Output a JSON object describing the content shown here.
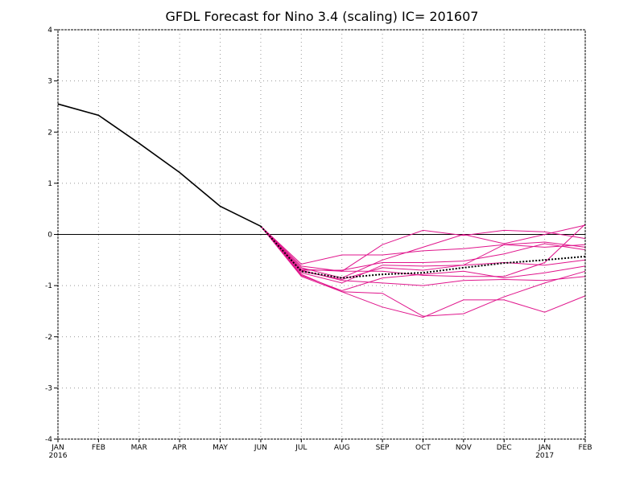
{
  "chart_data": {
    "type": "line",
    "title": "GFDL Forecast for Nino 3.4 (scaling) IC= 201607",
    "xlabel": "",
    "ylabel": "",
    "x_ticks": [
      "JAN",
      "FEB",
      "MAR",
      "APR",
      "MAY",
      "JUN",
      "JUL",
      "AUG",
      "SEP",
      "OCT",
      "NOV",
      "DEC",
      "JAN",
      "FEB"
    ],
    "x_year_labels": [
      {
        "index": 0,
        "label": "2016"
      },
      {
        "index": 12,
        "label": "2017"
      }
    ],
    "y_ticks": [
      4,
      3,
      2,
      1,
      0,
      -1,
      -2,
      -3,
      -4
    ],
    "ylim": [
      -4,
      4
    ],
    "grid": true,
    "zero_line": true,
    "colors": {
      "observed": "#000000",
      "ensemble": "#e0158c",
      "mean": "#000000",
      "grid": "#999999",
      "frame": "#000000"
    },
    "observed": {
      "x": [
        0,
        1,
        2,
        3,
        4,
        5
      ],
      "values": [
        2.55,
        2.33,
        1.78,
        1.21,
        0.55,
        0.16
      ]
    },
    "ensemble_x": [
      5,
      6,
      7,
      8,
      9,
      10,
      11,
      12,
      13
    ],
    "ensemble": [
      [
        0.16,
        -0.58,
        -0.4,
        -0.4,
        -0.32,
        -0.28,
        -0.2,
        -0.15,
        -0.25
      ],
      [
        0.16,
        -0.62,
        -0.72,
        -0.2,
        0.08,
        -0.02,
        0.08,
        0.05,
        -0.08
      ],
      [
        0.16,
        -0.65,
        -0.85,
        -0.5,
        -0.25,
        0.0,
        -0.18,
        0.0,
        0.18
      ],
      [
        0.16,
        -0.7,
        -0.7,
        -0.55,
        -0.55,
        -0.52,
        -0.38,
        -0.18,
        -0.3
      ],
      [
        0.16,
        -0.75,
        -0.95,
        -0.6,
        -0.62,
        -0.6,
        -0.55,
        -0.6,
        -0.5
      ],
      [
        0.16,
        -0.8,
        -1.1,
        -0.85,
        -0.78,
        -0.72,
        -0.85,
        -0.75,
        -0.62
      ],
      [
        0.16,
        -0.82,
        -1.12,
        -1.15,
        -1.6,
        -1.55,
        -1.22,
        -0.95,
        -0.72
      ],
      [
        0.16,
        -0.7,
        -0.9,
        -0.95,
        -1.0,
        -0.9,
        -0.88,
        -0.9,
        -0.82
      ],
      [
        0.16,
        -0.78,
        -1.12,
        -1.42,
        -1.62,
        -1.28,
        -1.28,
        -1.52,
        -1.2
      ],
      [
        0.16,
        -0.68,
        -0.72,
        -0.72,
        -0.8,
        -0.82,
        -0.82,
        -0.55,
        0.2
      ],
      [
        0.16,
        -0.72,
        -0.88,
        -0.65,
        -0.7,
        -0.6,
        -0.2,
        -0.25,
        -0.2
      ]
    ],
    "ensemble_mean": [
      0.16,
      -0.72,
      -0.85,
      -0.78,
      -0.75,
      -0.65,
      -0.56,
      -0.5,
      -0.43
    ]
  }
}
